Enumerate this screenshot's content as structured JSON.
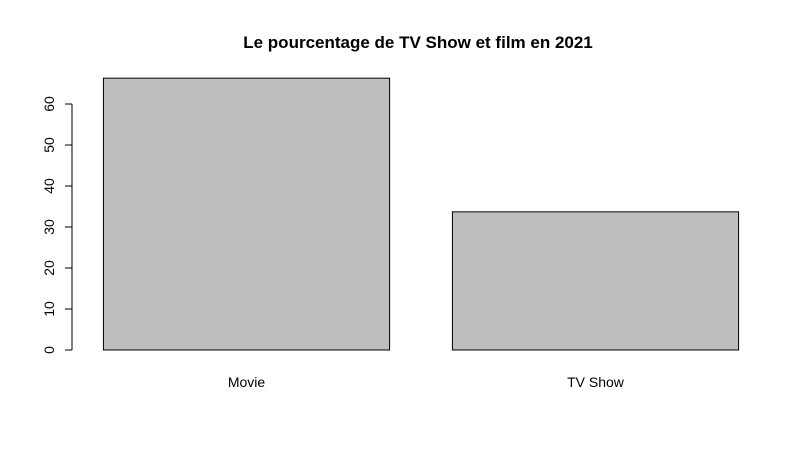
{
  "chart_data": {
    "type": "bar",
    "title": "Le pourcentage de TV Show et film en 2021",
    "xlabel": "",
    "ylabel": "",
    "categories": [
      "Movie",
      "TV Show"
    ],
    "values": [
      66.3,
      33.7
    ],
    "ylim": [
      0,
      70
    ],
    "yticks": [
      0,
      10,
      20,
      30,
      40,
      50,
      60
    ],
    "grid": false,
    "legend": "none",
    "bar_color": "#bebebe",
    "bar_border_color": "#000000"
  }
}
